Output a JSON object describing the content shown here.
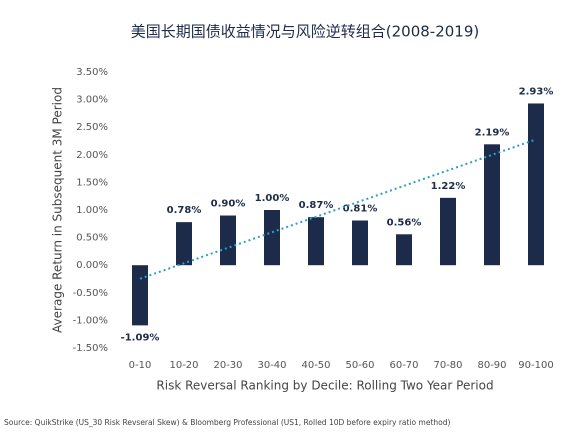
{
  "chart_data": {
    "type": "bar",
    "title": "美国长期国债收益情况与风险逆转组合(2008-2019)",
    "x_label": "Risk Reversal Ranking by Decile: Rolling Two Year Period",
    "y_label": "Average Return in Subsequent 3M Period",
    "source": "Source: QuikStrike (US_30 Risk Revseral Skew) & Bloomberg Professional (US1, Rolled 10D before expiry ratio method)",
    "categories": [
      "0-10",
      "10-20",
      "20-30",
      "30-40",
      "40-50",
      "50-60",
      "60-70",
      "70-80",
      "80-90",
      "90-100"
    ],
    "values": [
      -1.09,
      0.78,
      0.9,
      1.0,
      0.87,
      0.81,
      0.56,
      1.22,
      2.19,
      2.93
    ],
    "value_labels": [
      "-1.09%",
      "0.78%",
      "0.90%",
      "1.00%",
      "0.87%",
      "0.81%",
      "0.56%",
      "1.22%",
      "2.19%",
      "2.93%"
    ],
    "color": "#1d2b4b",
    "trendline": true,
    "trendline_color": "#2a9fd6",
    "ylim": [
      -1.5,
      3.5
    ],
    "yticks": [
      {
        "value": -1.5,
        "label": "-1.50%"
      },
      {
        "value": -1.0,
        "label": "-1.00%"
      },
      {
        "value": -0.5,
        "label": "-0.50%"
      },
      {
        "value": 0,
        "label": "0.00%"
      },
      {
        "value": 0.5,
        "label": "0.50%"
      },
      {
        "value": 1.0,
        "label": "1.00%"
      },
      {
        "value": 1.5,
        "label": "1.50%"
      },
      {
        "value": 2.0,
        "label": "2.00%"
      },
      {
        "value": 2.5,
        "label": "2.50%"
      },
      {
        "value": 3.0,
        "label": "3.00%"
      },
      {
        "value": 3.5,
        "label": "3.50%"
      }
    ],
    "grid": false
  }
}
